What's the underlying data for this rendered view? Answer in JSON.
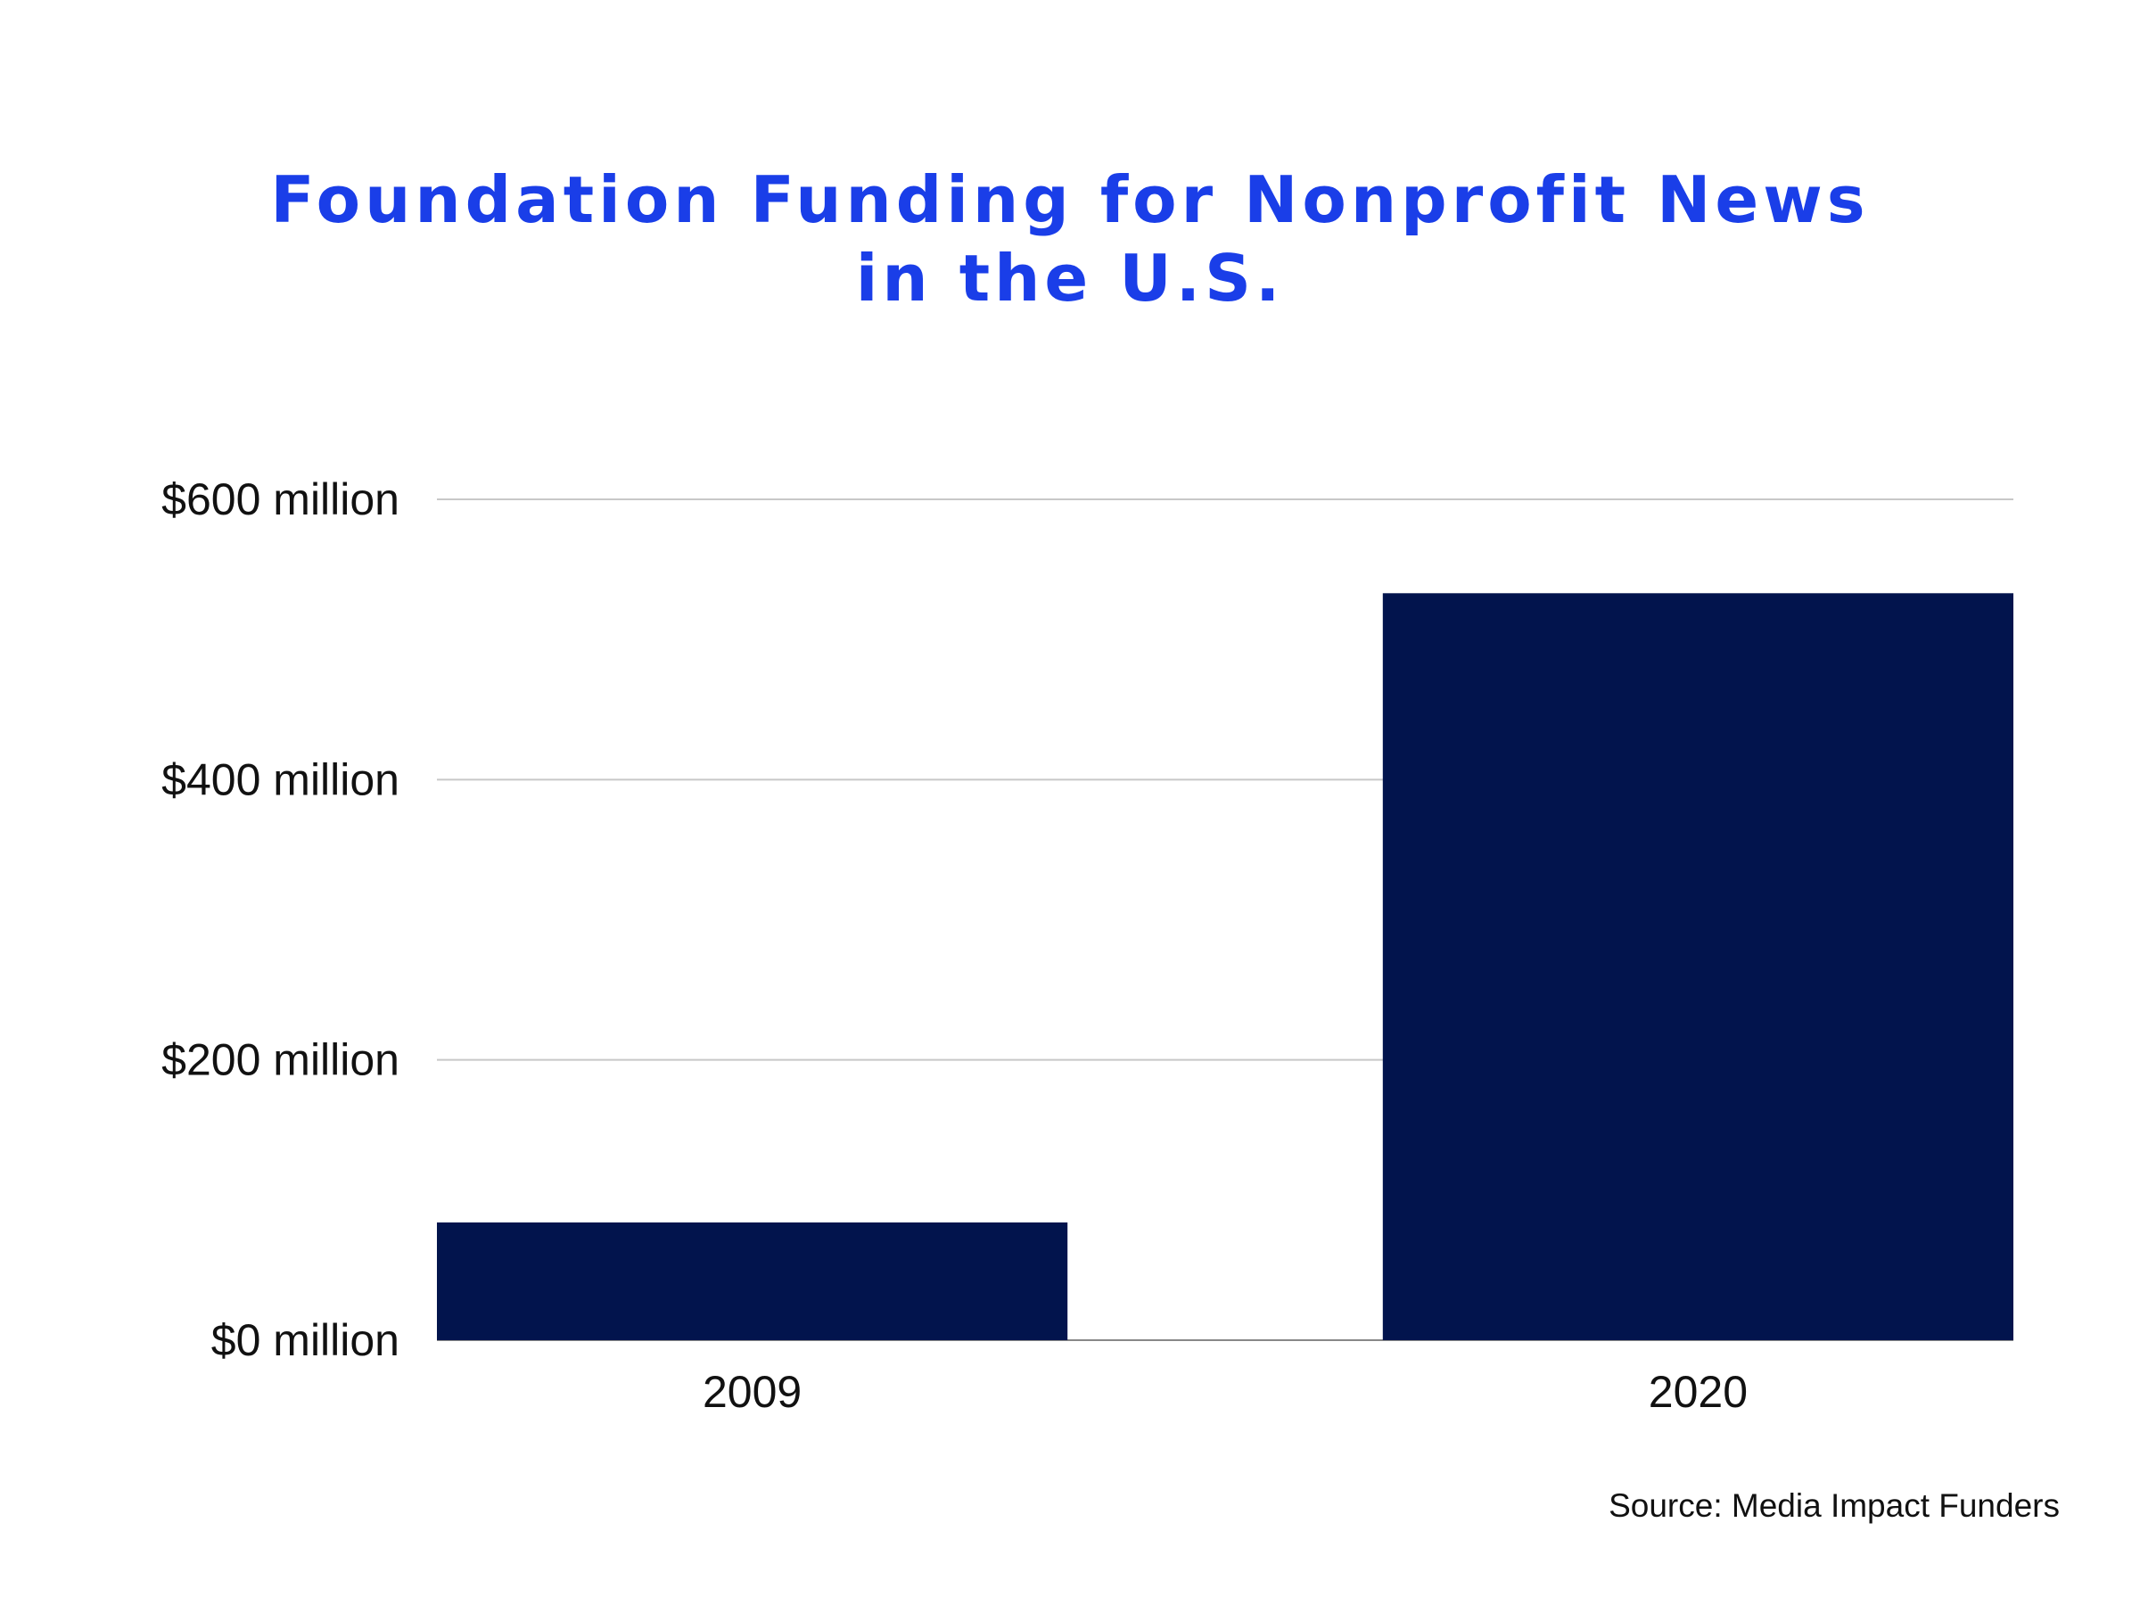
{
  "colors": {
    "title": "#1a3ee8",
    "bar": "#02144d",
    "gridline": "#c8c8c8",
    "baseline": "#888888",
    "text": "#111111"
  },
  "chart_data": {
    "type": "bar",
    "title_lines": [
      "Foundation Funding for Nonprofit News",
      "in the U.S."
    ],
    "categories": [
      "2009",
      "2020"
    ],
    "values": [
      84,
      533
    ],
    "ylim": [
      0,
      600
    ],
    "yticks": [
      0,
      200,
      400,
      600
    ],
    "ytick_labels": [
      "$0 million",
      "$200 million",
      "$400 million",
      "$600 million"
    ],
    "grid": true,
    "legend": "none",
    "source": "Source: Media Impact Funders"
  }
}
